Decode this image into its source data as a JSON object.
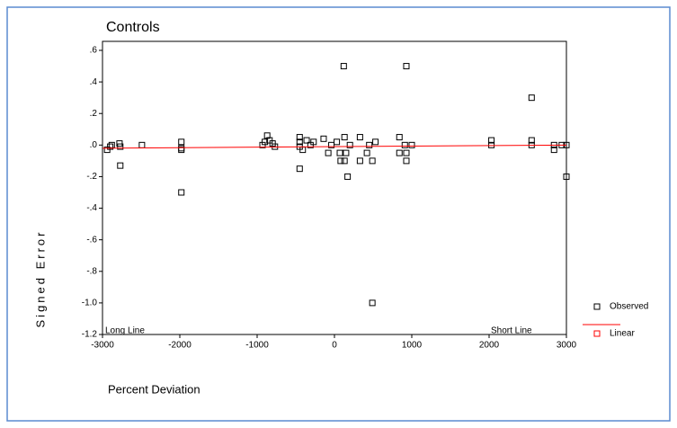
{
  "chart_data": {
    "type": "scatter",
    "title": "Controls",
    "x_label": "Percent Deviation",
    "y_label": "Signed Error",
    "xlim": [
      -3000,
      3000
    ],
    "ylim": [
      -1.2,
      0.6
    ],
    "xticks": [
      -3000,
      -2000,
      -1000,
      0,
      1000,
      2000,
      3000
    ],
    "yticks": [
      {
        "value": 0.6,
        "label": ".6"
      },
      {
        "value": 0.4,
        "label": ".4"
      },
      {
        "value": 0.2,
        "label": ".2"
      },
      {
        "value": 0.0,
        "label": ".0"
      },
      {
        "value": -0.2,
        "label": "-.2"
      },
      {
        "value": -0.4,
        "label": "-.4"
      },
      {
        "value": -0.6,
        "label": "-.6"
      },
      {
        "value": -0.8,
        "label": "-.8"
      },
      {
        "value": -1.0,
        "label": "-1.0"
      },
      {
        "value": -1.2,
        "label": "-1.2"
      }
    ],
    "annotations": [
      "Long Line",
      "Short Line"
    ],
    "series": [
      {
        "name": "Observed",
        "color": "#000000",
        "kind": "points",
        "x": [
          -2940,
          -2900,
          -2880,
          -2780,
          -2770,
          -2770,
          -2490,
          -1980,
          -1980,
          -1980,
          -1980,
          -930,
          -900,
          -870,
          -840,
          -800,
          -770,
          -450,
          -450,
          -450,
          -450,
          -410,
          -360,
          -310,
          -270,
          -140,
          -80,
          -40,
          30,
          70,
          80,
          120,
          130,
          130,
          150,
          170,
          200,
          330,
          330,
          420,
          450,
          490,
          490,
          530,
          840,
          840,
          910,
          930,
          930,
          930,
          1000,
          2030,
          2030,
          2550,
          2550,
          2550,
          2840,
          2840,
          2940,
          3000,
          3000
        ],
        "values": [
          -0.03,
          -0.01,
          0,
          0.01,
          -0.01,
          -0.13,
          0,
          0.02,
          -0.02,
          -0.03,
          -0.3,
          0,
          0.02,
          0.06,
          0.03,
          0.01,
          -0.01,
          0.05,
          0.02,
          -0.01,
          -0.15,
          -0.03,
          0.03,
          0,
          0.02,
          0.04,
          -0.05,
          0,
          0.02,
          -0.05,
          -0.1,
          0.5,
          0.05,
          -0.1,
          -0.05,
          -0.2,
          0,
          0.05,
          -0.1,
          -0.05,
          0,
          -1.0,
          -0.1,
          0.02,
          0.05,
          -0.05,
          0,
          0.5,
          -0.05,
          -0.1,
          0,
          0.03,
          0,
          0.3,
          0.03,
          0,
          0,
          -0.03,
          0,
          0,
          -0.2
        ]
      },
      {
        "name": "Linear",
        "color": "#ff0000",
        "kind": "line",
        "x": [
          -3000,
          3000
        ],
        "values": [
          -0.02,
          0.0
        ]
      }
    ]
  }
}
